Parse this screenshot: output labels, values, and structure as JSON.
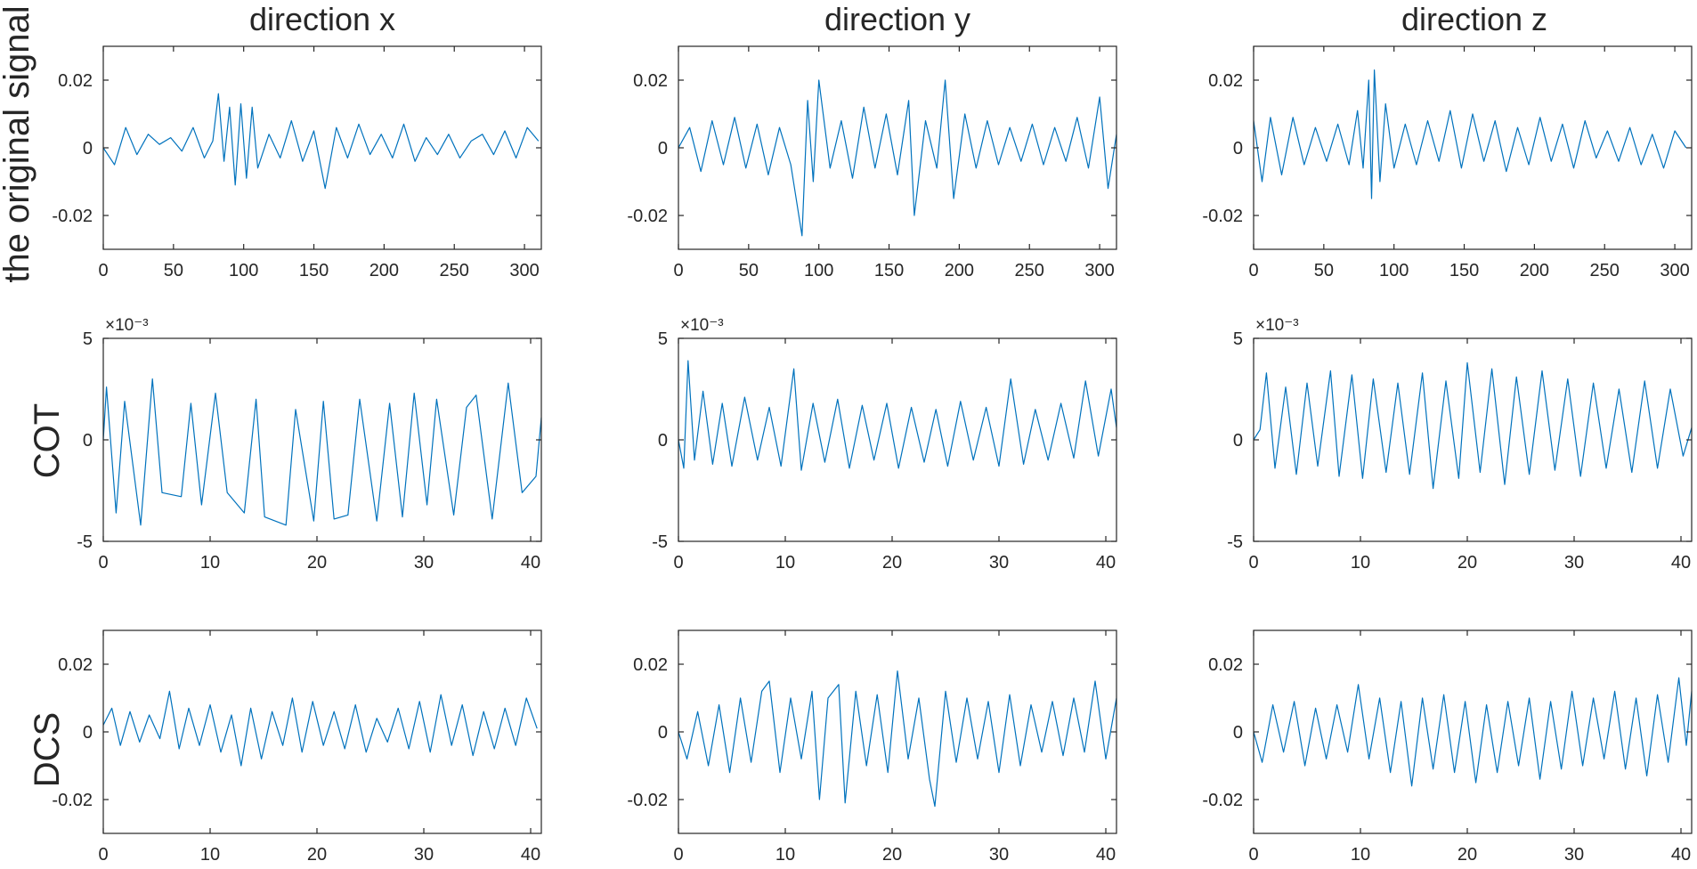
{
  "figure": {
    "column_titles": [
      "direction x",
      "direction y",
      "direction z"
    ],
    "row_labels": [
      "the original signal",
      "COT",
      "DCS"
    ]
  },
  "chart_data": [
    {
      "type": "line",
      "row": 0,
      "col": 0,
      "xlim": [
        0,
        312
      ],
      "ylim": [
        -0.03,
        0.03
      ],
      "xticks": [
        0,
        50,
        100,
        150,
        200,
        250,
        300
      ],
      "xtick_labels": [
        "0",
        "50",
        "100",
        "150",
        "200",
        "250",
        "300"
      ],
      "yticks": [
        -0.02,
        0,
        0.02
      ],
      "ytick_labels": [
        "-0.02",
        "0",
        "0.02"
      ],
      "exponent_label": "",
      "series": [
        {
          "color": "#0072BD",
          "x": [
            0,
            8,
            16,
            24,
            32,
            40,
            48,
            56,
            64,
            72,
            78,
            82,
            86,
            90,
            94,
            98,
            102,
            106,
            110,
            118,
            126,
            134,
            142,
            150,
            158,
            166,
            174,
            182,
            190,
            198,
            206,
            214,
            222,
            230,
            238,
            246,
            254,
            262,
            270,
            278,
            286,
            294,
            302,
            310
          ],
          "values": [
            0.0,
            -0.005,
            0.006,
            -0.002,
            0.004,
            0.001,
            0.003,
            -0.001,
            0.006,
            -0.003,
            0.002,
            0.016,
            -0.004,
            0.012,
            -0.011,
            0.013,
            -0.009,
            0.012,
            -0.006,
            0.004,
            -0.003,
            0.008,
            -0.004,
            0.005,
            -0.012,
            0.006,
            -0.003,
            0.007,
            -0.002,
            0.004,
            -0.003,
            0.007,
            -0.004,
            0.003,
            -0.002,
            0.004,
            -0.003,
            0.002,
            0.004,
            -0.002,
            0.005,
            -0.003,
            0.006,
            0.002
          ]
        }
      ]
    },
    {
      "type": "line",
      "row": 0,
      "col": 1,
      "xlim": [
        0,
        312
      ],
      "ylim": [
        -0.03,
        0.03
      ],
      "xticks": [
        0,
        50,
        100,
        150,
        200,
        250,
        300
      ],
      "xtick_labels": [
        "0",
        "50",
        "100",
        "150",
        "200",
        "250",
        "300"
      ],
      "yticks": [
        -0.02,
        0,
        0.02
      ],
      "ytick_labels": [
        "-0.02",
        "0",
        "0.02"
      ],
      "exponent_label": "",
      "series": [
        {
          "color": "#0072BD",
          "x": [
            0,
            8,
            16,
            24,
            32,
            40,
            48,
            56,
            64,
            72,
            80,
            88,
            92,
            96,
            100,
            108,
            116,
            124,
            132,
            140,
            148,
            156,
            164,
            168,
            176,
            184,
            190,
            196,
            204,
            212,
            220,
            228,
            236,
            244,
            252,
            260,
            268,
            276,
            284,
            292,
            300,
            306,
            312
          ],
          "values": [
            0.0,
            0.006,
            -0.007,
            0.008,
            -0.005,
            0.009,
            -0.006,
            0.007,
            -0.008,
            0.006,
            -0.005,
            -0.026,
            0.014,
            -0.01,
            0.02,
            -0.006,
            0.008,
            -0.009,
            0.012,
            -0.006,
            0.01,
            -0.008,
            0.014,
            -0.02,
            0.008,
            -0.006,
            0.02,
            -0.015,
            0.01,
            -0.006,
            0.008,
            -0.005,
            0.006,
            -0.004,
            0.007,
            -0.005,
            0.006,
            -0.004,
            0.009,
            -0.006,
            0.015,
            -0.012,
            0.004
          ]
        }
      ]
    },
    {
      "type": "line",
      "row": 0,
      "col": 2,
      "xlim": [
        0,
        312
      ],
      "ylim": [
        -0.03,
        0.03
      ],
      "xticks": [
        0,
        50,
        100,
        150,
        200,
        250,
        300
      ],
      "xtick_labels": [
        "0",
        "50",
        "100",
        "150",
        "200",
        "250",
        "300"
      ],
      "yticks": [
        -0.02,
        0,
        0.02
      ],
      "ytick_labels": [
        "-0.02",
        "0",
        "0.02"
      ],
      "exponent_label": "",
      "series": [
        {
          "color": "#0072BD",
          "x": [
            0,
            6,
            12,
            20,
            28,
            36,
            44,
            52,
            60,
            68,
            74,
            78,
            82,
            84,
            86,
            90,
            94,
            100,
            108,
            116,
            124,
            132,
            140,
            148,
            156,
            164,
            172,
            180,
            188,
            196,
            204,
            212,
            220,
            228,
            236,
            244,
            252,
            260,
            268,
            276,
            284,
            292,
            300,
            308
          ],
          "values": [
            0.008,
            -0.01,
            0.009,
            -0.008,
            0.009,
            -0.005,
            0.006,
            -0.004,
            0.007,
            -0.005,
            0.011,
            -0.006,
            0.02,
            -0.015,
            0.023,
            -0.01,
            0.013,
            -0.006,
            0.007,
            -0.005,
            0.008,
            -0.004,
            0.011,
            -0.006,
            0.01,
            -0.004,
            0.008,
            -0.007,
            0.006,
            -0.005,
            0.009,
            -0.004,
            0.007,
            -0.006,
            0.008,
            -0.003,
            0.005,
            -0.004,
            0.006,
            -0.005,
            0.004,
            -0.006,
            0.005,
            0.0
          ]
        }
      ]
    },
    {
      "type": "line",
      "row": 1,
      "col": 0,
      "xlim": [
        0,
        41
      ],
      "ylim": [
        -5,
        5
      ],
      "xticks": [
        0,
        10,
        20,
        30,
        40
      ],
      "xtick_labels": [
        "0",
        "10",
        "20",
        "30",
        "40"
      ],
      "yticks": [
        -5,
        0,
        5
      ],
      "ytick_labels": [
        "-5",
        "0",
        "5"
      ],
      "exponent_label": "×10⁻³",
      "series": [
        {
          "color": "#0072BD",
          "x": [
            0,
            0.3,
            1.2,
            2.0,
            3.5,
            4.6,
            5.5,
            7.3,
            8.2,
            9.2,
            10.5,
            11.6,
            13.2,
            14.3,
            15.1,
            17.1,
            18.0,
            19.7,
            20.6,
            21.6,
            22.9,
            24.0,
            25.6,
            26.8,
            28.0,
            29.1,
            30.3,
            31.2,
            32.8,
            34.0,
            34.9,
            36.4,
            37.9,
            39.2,
            40.5,
            41.0
          ],
          "values": [
            0,
            2.6,
            -3.6,
            1.9,
            -4.2,
            3.0,
            -2.6,
            -2.8,
            1.8,
            -3.2,
            2.3,
            -2.6,
            -3.6,
            2.0,
            -3.8,
            -4.2,
            1.5,
            -4.0,
            1.9,
            -3.9,
            -3.7,
            2.0,
            -4.0,
            1.8,
            -3.8,
            2.3,
            -3.2,
            2.0,
            -3.7,
            1.6,
            2.2,
            -3.9,
            2.8,
            -2.6,
            -1.8,
            1.1
          ]
        }
      ]
    },
    {
      "type": "line",
      "row": 1,
      "col": 1,
      "xlim": [
        0,
        41
      ],
      "ylim": [
        -5,
        5
      ],
      "xticks": [
        0,
        10,
        20,
        30,
        40
      ],
      "xtick_labels": [
        "0",
        "10",
        "20",
        "30",
        "40"
      ],
      "yticks": [
        -5,
        0,
        5
      ],
      "ytick_labels": [
        "-5",
        "0",
        "5"
      ],
      "exponent_label": "×10⁻³",
      "series": [
        {
          "color": "#0072BD",
          "x": [
            0,
            0.5,
            0.9,
            1.5,
            2.3,
            3.2,
            4.1,
            5.0,
            6.2,
            7.4,
            8.5,
            9.6,
            10.8,
            11.5,
            12.6,
            13.7,
            14.9,
            16.0,
            17.2,
            18.3,
            19.5,
            20.6,
            21.8,
            23.0,
            24.1,
            25.2,
            26.4,
            27.6,
            28.8,
            30.0,
            31.1,
            32.3,
            33.4,
            34.6,
            35.8,
            37.0,
            38.1,
            39.3,
            40.5,
            41.0
          ],
          "values": [
            0,
            -1.4,
            3.9,
            -1.0,
            2.4,
            -1.2,
            1.8,
            -1.3,
            2.1,
            -1.0,
            1.6,
            -1.3,
            3.5,
            -1.5,
            1.8,
            -1.1,
            2.0,
            -1.4,
            1.7,
            -1.0,
            1.8,
            -1.4,
            1.6,
            -1.1,
            1.5,
            -1.3,
            1.9,
            -1.0,
            1.6,
            -1.3,
            3.0,
            -1.2,
            1.5,
            -1.0,
            1.8,
            -0.9,
            2.9,
            -0.8,
            2.5,
            0.6
          ]
        }
      ]
    },
    {
      "type": "line",
      "row": 1,
      "col": 2,
      "xlim": [
        0,
        41
      ],
      "ylim": [
        -5,
        5
      ],
      "xticks": [
        0,
        10,
        20,
        30,
        40
      ],
      "xtick_labels": [
        "0",
        "10",
        "20",
        "30",
        "40"
      ],
      "yticks": [
        -5,
        0,
        5
      ],
      "ytick_labels": [
        "-5",
        "0",
        "5"
      ],
      "exponent_label": "×10⁻³",
      "series": [
        {
          "color": "#0072BD",
          "x": [
            0,
            0.6,
            1.2,
            2.0,
            3.0,
            4.0,
            5.0,
            6.0,
            7.2,
            8.0,
            9.2,
            10.2,
            11.2,
            12.4,
            13.5,
            14.6,
            15.8,
            16.8,
            18.0,
            19.2,
            20.0,
            21.2,
            22.3,
            23.5,
            24.6,
            25.8,
            27.0,
            28.2,
            29.4,
            30.6,
            31.8,
            33.0,
            34.2,
            35.4,
            36.6,
            37.8,
            39.0,
            40.2,
            41.0
          ],
          "values": [
            0,
            0.5,
            3.3,
            -1.4,
            2.6,
            -1.7,
            2.8,
            -1.3,
            3.4,
            -1.8,
            3.2,
            -1.9,
            3.0,
            -1.6,
            2.8,
            -1.7,
            3.3,
            -2.4,
            2.9,
            -1.9,
            3.8,
            -1.6,
            3.5,
            -2.2,
            3.1,
            -1.7,
            3.4,
            -1.5,
            3.0,
            -1.8,
            2.8,
            -1.4,
            2.5,
            -1.6,
            2.9,
            -1.4,
            2.5,
            -0.8,
            0.6
          ]
        }
      ]
    },
    {
      "type": "line",
      "row": 2,
      "col": 0,
      "xlim": [
        0,
        41
      ],
      "ylim": [
        -0.03,
        0.03
      ],
      "xticks": [
        0,
        10,
        20,
        30,
        40
      ],
      "xtick_labels": [
        "0",
        "10",
        "20",
        "30",
        "40"
      ],
      "yticks": [
        -0.02,
        0,
        0.02
      ],
      "ytick_labels": [
        "-0.02",
        "0",
        "0.02"
      ],
      "exponent_label": "",
      "series": [
        {
          "color": "#0072BD",
          "x": [
            0,
            0.8,
            1.6,
            2.5,
            3.4,
            4.3,
            5.3,
            6.2,
            7.1,
            8.0,
            9.0,
            10.0,
            11.0,
            12.0,
            12.9,
            13.8,
            14.8,
            15.8,
            16.8,
            17.7,
            18.6,
            19.6,
            20.6,
            21.6,
            22.6,
            23.6,
            24.6,
            25.6,
            26.6,
            27.6,
            28.6,
            29.6,
            30.6,
            31.6,
            32.6,
            33.6,
            34.6,
            35.6,
            36.6,
            37.6,
            38.6,
            39.6,
            40.6
          ],
          "values": [
            0.002,
            0.007,
            -0.004,
            0.006,
            -0.003,
            0.005,
            -0.002,
            0.012,
            -0.005,
            0.007,
            -0.004,
            0.008,
            -0.006,
            0.005,
            -0.01,
            0.007,
            -0.008,
            0.006,
            -0.004,
            0.01,
            -0.006,
            0.009,
            -0.004,
            0.006,
            -0.005,
            0.008,
            -0.006,
            0.004,
            -0.003,
            0.007,
            -0.005,
            0.009,
            -0.006,
            0.011,
            -0.004,
            0.008,
            -0.007,
            0.006,
            -0.005,
            0.007,
            -0.004,
            0.01,
            0.001
          ]
        }
      ]
    },
    {
      "type": "line",
      "row": 2,
      "col": 1,
      "xlim": [
        0,
        41
      ],
      "ylim": [
        -0.03,
        0.03
      ],
      "xticks": [
        0,
        10,
        20,
        30,
        40
      ],
      "xtick_labels": [
        "0",
        "10",
        "20",
        "30",
        "40"
      ],
      "yticks": [
        -0.02,
        0,
        0.02
      ],
      "ytick_labels": [
        "-0.02",
        "0",
        "0.02"
      ],
      "exponent_label": "",
      "series": [
        {
          "color": "#0072BD",
          "x": [
            0,
            0.8,
            1.8,
            2.8,
            3.8,
            4.8,
            5.8,
            6.8,
            7.8,
            8.5,
            9.5,
            10.5,
            11.5,
            12.5,
            13.2,
            14.0,
            15.0,
            15.6,
            16.6,
            17.6,
            18.6,
            19.6,
            20.5,
            21.5,
            22.5,
            23.5,
            24.0,
            25.0,
            26.0,
            27.0,
            28.0,
            29.0,
            30.0,
            31.0,
            32.0,
            33.0,
            34.0,
            35.0,
            36.0,
            37.0,
            38.0,
            39.0,
            40.0,
            41.0
          ],
          "values": [
            0.0,
            -0.008,
            0.006,
            -0.01,
            0.008,
            -0.012,
            0.01,
            -0.009,
            0.012,
            0.015,
            -0.012,
            0.01,
            -0.008,
            0.012,
            -0.02,
            0.01,
            0.014,
            -0.021,
            0.012,
            -0.01,
            0.011,
            -0.012,
            0.018,
            -0.008,
            0.01,
            -0.014,
            -0.022,
            0.012,
            -0.009,
            0.01,
            -0.008,
            0.009,
            -0.012,
            0.011,
            -0.01,
            0.008,
            -0.006,
            0.009,
            -0.007,
            0.01,
            -0.006,
            0.015,
            -0.008,
            0.01
          ]
        }
      ]
    },
    {
      "type": "line",
      "row": 2,
      "col": 2,
      "xlim": [
        0,
        41
      ],
      "ylim": [
        -0.03,
        0.03
      ],
      "xticks": [
        0,
        10,
        20,
        30,
        40
      ],
      "xtick_labels": [
        "0",
        "10",
        "20",
        "30",
        "40"
      ],
      "yticks": [
        -0.02,
        0,
        0.02
      ],
      "ytick_labels": [
        "-0.02",
        "0",
        "0.02"
      ],
      "exponent_label": "",
      "series": [
        {
          "color": "#0072BD",
          "x": [
            0,
            0.8,
            1.8,
            2.8,
            3.8,
            4.8,
            5.8,
            6.8,
            7.8,
            8.8,
            9.8,
            10.8,
            11.8,
            12.8,
            13.8,
            14.8,
            15.8,
            16.8,
            17.8,
            18.8,
            19.8,
            20.8,
            21.8,
            22.8,
            23.8,
            24.8,
            25.8,
            26.8,
            27.8,
            28.8,
            29.8,
            30.8,
            31.8,
            32.8,
            33.8,
            34.8,
            35.8,
            36.8,
            37.8,
            38.8,
            39.8,
            40.5,
            41.0
          ],
          "values": [
            0.0,
            -0.009,
            0.008,
            -0.006,
            0.009,
            -0.01,
            0.007,
            -0.008,
            0.008,
            -0.006,
            0.014,
            -0.008,
            0.01,
            -0.012,
            0.009,
            -0.016,
            0.01,
            -0.011,
            0.011,
            -0.012,
            0.009,
            -0.015,
            0.008,
            -0.012,
            0.009,
            -0.01,
            0.01,
            -0.014,
            0.009,
            -0.011,
            0.012,
            -0.01,
            0.01,
            -0.008,
            0.012,
            -0.011,
            0.01,
            -0.013,
            0.011,
            -0.009,
            0.016,
            -0.004,
            0.012
          ]
        }
      ]
    }
  ]
}
